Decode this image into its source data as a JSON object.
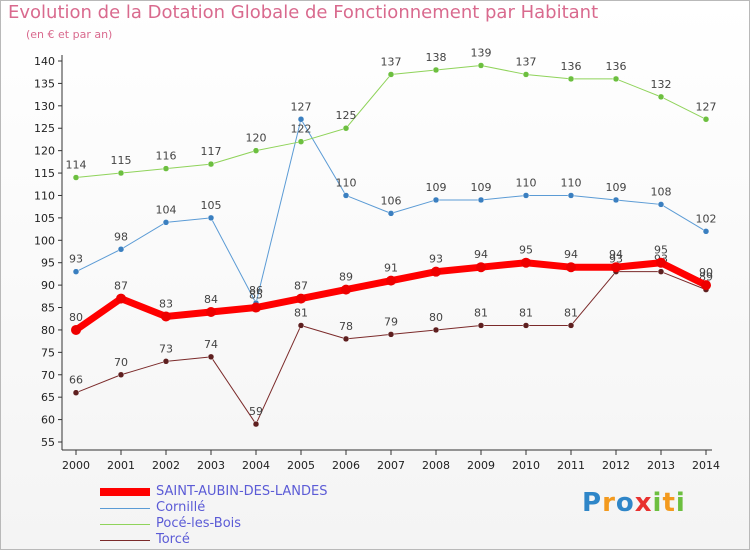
{
  "colors": {
    "title": "#d96a8e",
    "legend_text": "#5b5bd6",
    "axis": "#333333",
    "grid_tick": "#333333"
  },
  "brand": {
    "text": "Proxiti",
    "letters": [
      {
        "ch": "P",
        "color": "#2f86c8"
      },
      {
        "ch": "r",
        "color": "#f39a1e"
      },
      {
        "ch": "o",
        "color": "#2f86c8"
      },
      {
        "ch": "x",
        "color": "#e8312f"
      },
      {
        "ch": "i",
        "color": "#6cbf3f"
      },
      {
        "ch": "t",
        "color": "#f39a1e"
      },
      {
        "ch": "i",
        "color": "#6cbf3f"
      }
    ]
  },
  "chart_data": {
    "type": "line",
    "title": "Evolution de la Dotation Globale de Fonctionnement par Habitant",
    "subtitle": "(en € et par an)",
    "xlabel": "",
    "ylabel": "",
    "x": [
      "2000",
      "2001",
      "2002",
      "2003",
      "2004",
      "2005",
      "2006",
      "2007",
      "2008",
      "2009",
      "2010",
      "2011",
      "2012",
      "2013",
      "2014"
    ],
    "ylim": [
      55,
      140
    ],
    "yticks": [
      55,
      60,
      65,
      70,
      75,
      80,
      85,
      90,
      95,
      100,
      105,
      110,
      115,
      120,
      125,
      130,
      135,
      140
    ],
    "grid": false,
    "legend_position": "bottom-left",
    "series": [
      {
        "name": "SAINT-AUBIN-DES-LANDES",
        "color": "#ff0000",
        "marker": "#ee0000",
        "width": 7,
        "values": [
          80,
          87,
          83,
          84,
          85,
          87,
          89,
          91,
          93,
          94,
          95,
          94,
          94,
          95,
          90
        ]
      },
      {
        "name": "Cornillé",
        "color": "#5b9bd5",
        "marker": "#3a7fc0",
        "width": 1,
        "values": [
          93,
          98,
          104,
          105,
          86,
          127,
          110,
          106,
          109,
          109,
          110,
          110,
          109,
          108,
          102
        ]
      },
      {
        "name": "Pocé-les-Bois",
        "color": "#8fd35a",
        "marker": "#6cbf3f",
        "width": 1,
        "values": [
          114,
          115,
          116,
          117,
          120,
          122,
          125,
          137,
          138,
          139,
          137,
          136,
          136,
          132,
          127
        ]
      },
      {
        "name": "Torcé",
        "color": "#7b2a2a",
        "marker": "#5e1f1f",
        "width": 1,
        "values": [
          66,
          70,
          73,
          74,
          59,
          81,
          78,
          79,
          80,
          81,
          81,
          81,
          93,
          93,
          89
        ]
      }
    ]
  }
}
